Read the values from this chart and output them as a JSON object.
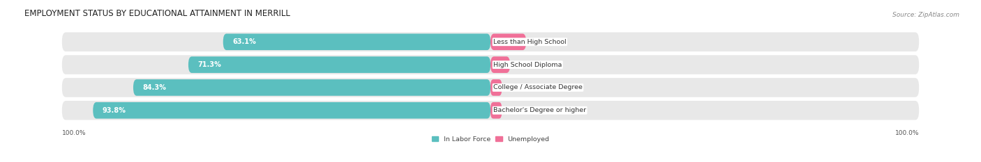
{
  "title": "EMPLOYMENT STATUS BY EDUCATIONAL ATTAINMENT IN MERRILL",
  "source": "Source: ZipAtlas.com",
  "categories": [
    "Less than High School",
    "High School Diploma",
    "College / Associate Degree",
    "Bachelor's Degree or higher"
  ],
  "labor_force": [
    63.1,
    71.3,
    84.3,
    93.8
  ],
  "unemployed": [
    8.4,
    4.6,
    0.0,
    0.0
  ],
  "labor_force_color": "#5BBFBF",
  "unemployed_color": "#F07098",
  "row_bg_color": "#E8E8E8",
  "x_left_label": "100.0%",
  "x_right_label": "100.0%",
  "legend_labor": "In Labor Force",
  "legend_unemployed": "Unemployed",
  "title_fontsize": 8.5,
  "source_fontsize": 6.5,
  "bar_label_fontsize": 7.0,
  "cat_label_fontsize": 6.8,
  "tick_fontsize": 6.5,
  "figsize": [
    14.06,
    2.33
  ],
  "dpi": 100
}
